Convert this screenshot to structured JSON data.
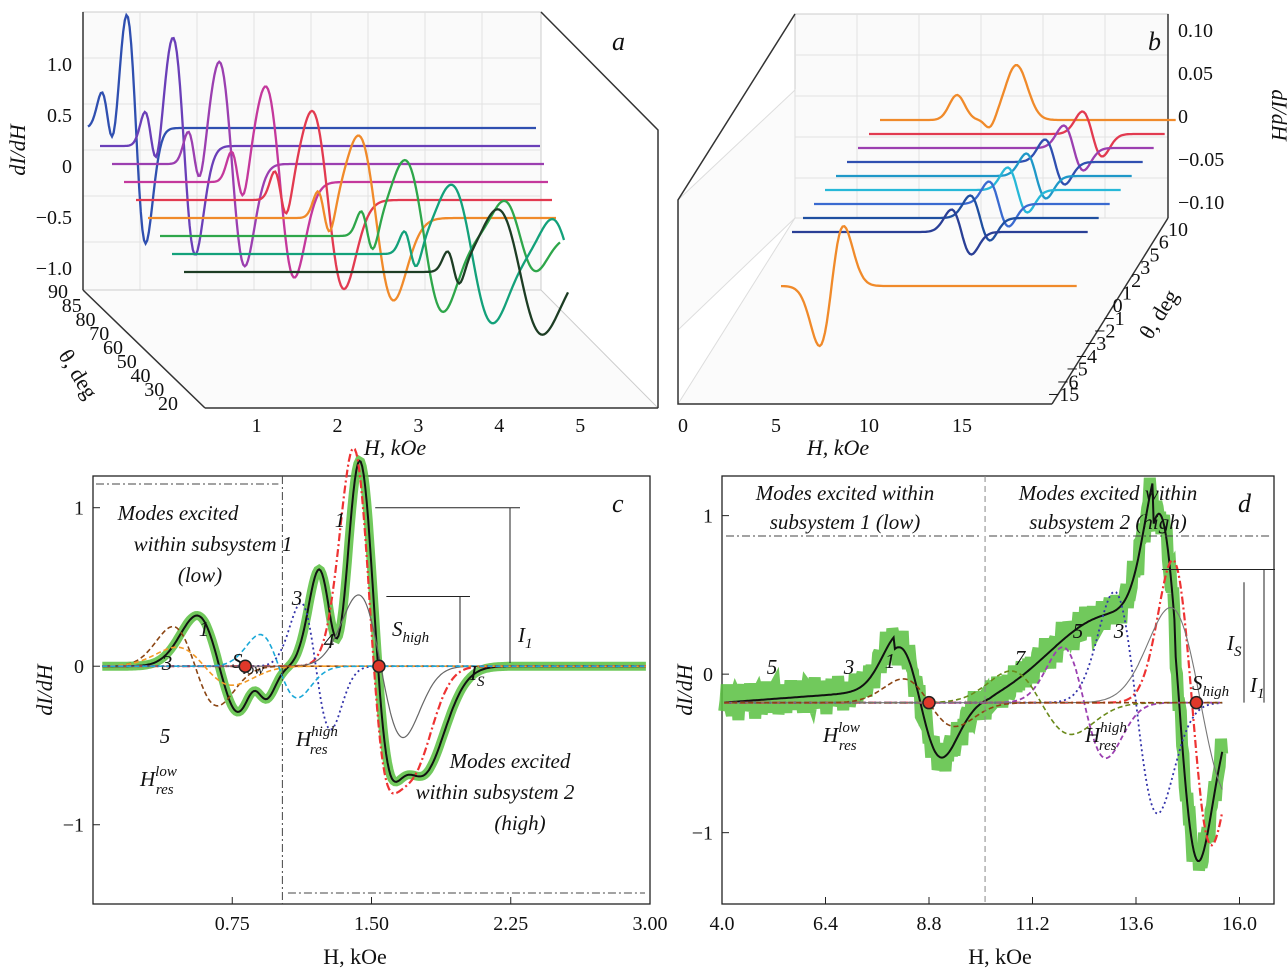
{
  "chart_data": [
    {
      "panel_label": "a",
      "type": "line",
      "xlabel": "H, kOe",
      "ylabel": "dI/dH",
      "zlabel": "θ, deg",
      "x_ticks": [
        "1",
        "2",
        "3",
        "4",
        "5"
      ],
      "y_ticks": [
        "1.0",
        "0.5",
        "0",
        "−0.5",
        "−1.0"
      ],
      "z_ticks": [
        "90",
        "85",
        "80",
        "70",
        "60",
        "50",
        "40",
        "30",
        "20"
      ],
      "xlim": [
        0.3,
        5.9
      ],
      "ylim": [
        -1.2,
        1.3
      ],
      "colors": [
        "#2f4fb0",
        "#6a3fb8",
        "#9b3fb0",
        "#c4389c",
        "#e23a50",
        "#f08a2a",
        "#2ea64a",
        "#13a17a",
        "#1d3d24"
      ]
    },
    {
      "panel_label": "b",
      "type": "line",
      "xlabel": "H, kOe",
      "ylabel": "dI/dH",
      "zlabel": "θ, deg",
      "x_ticks": [
        "0",
        "5",
        "10",
        "15"
      ],
      "y_ticks": [
        "0.10",
        "0.05",
        "0",
        "−0.05",
        "−0.10"
      ],
      "z_ticks": [
        "10",
        "6",
        "5",
        "3",
        "2",
        "1",
        "0",
        "−1",
        "−2",
        "−3",
        "−4",
        "−5",
        "−6",
        "−15"
      ],
      "xlim": [
        0,
        16
      ],
      "ylim": [
        -0.12,
        0.12
      ],
      "colors": [
        "#f08a2a",
        "#e23a50",
        "#9b3fb0",
        "#2f4fb0",
        "#1f98c8",
        "#27b8d8",
        "#3a6ad0",
        "#1f4fa0",
        "#2a3f96",
        "#f08a2a"
      ]
    },
    {
      "panel_label": "c",
      "type": "line",
      "xlabel": "H, kOe",
      "ylabel": "dI/dH",
      "x_ticks": [
        "0.75",
        "1.50",
        "2.25",
        "3.00"
      ],
      "y_ticks": [
        "1",
        "0",
        "−1"
      ],
      "xlim": [
        0,
        3.0
      ],
      "ylim": [
        -1.5,
        1.2
      ],
      "annotations": {
        "region_low": [
          "Modes excited",
          "within subsystem 1",
          "(low)"
        ],
        "region_high": [
          "Modes excited",
          "within subsystem 2",
          "(high)"
        ],
        "mode_labels": [
          "1",
          "3",
          "3",
          "1",
          "4",
          "5"
        ],
        "s_low": "S",
        "s_low_sub": "low",
        "s_high": "S",
        "s_high_sub": "high",
        "i1": "I",
        "i1_sub": "1",
        "is": "I",
        "is_sub": "S",
        "h_low": "H",
        "h_low_sup": "low",
        "h_low_sub": "res",
        "h_high": "H",
        "h_high_sup": "high",
        "h_high_sub": "res"
      },
      "resonance_points": [
        {
          "x": 0.82,
          "y": 0
        },
        {
          "x": 1.54,
          "y": 0
        }
      ]
    },
    {
      "panel_label": "d",
      "type": "line",
      "xlabel": "H, kOe",
      "ylabel": "dI/dH",
      "x_ticks": [
        "4.0",
        "6.4",
        "8.8",
        "11.2",
        "13.6",
        "16.0"
      ],
      "y_ticks": [
        "1",
        "0",
        "−1"
      ],
      "xlim": [
        4.0,
        16.8
      ],
      "ylim": [
        -1.45,
        1.25
      ],
      "annotations": {
        "region_low": [
          "Modes excited within",
          "subsystem 1 (low)"
        ],
        "region_high": [
          "Modes excited within",
          "subsystem 2 (high)"
        ],
        "mode_labels": [
          "5",
          "3",
          "1",
          "7",
          "5",
          "3"
        ],
        "s_high": "S",
        "s_high_sub": "high",
        "i1": "I",
        "i1_sub": "1",
        "is": "I",
        "is_sub": "S",
        "h_low": "H",
        "h_low_sup": "low",
        "h_low_sub": "res",
        "h_high": "H",
        "h_high_sup": "high",
        "h_high_sub": "res"
      },
      "resonance_points": [
        {
          "x": 8.8,
          "y": -0.18
        },
        {
          "x": 15.0,
          "y": -0.18
        }
      ]
    }
  ]
}
